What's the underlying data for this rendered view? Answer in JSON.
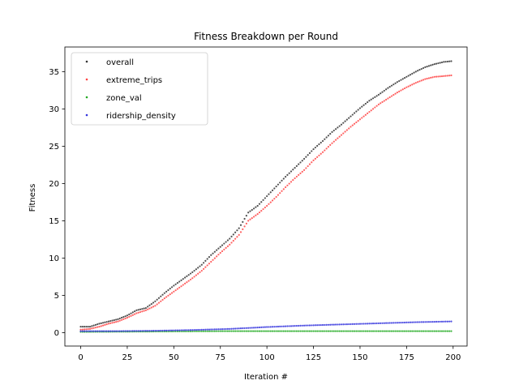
{
  "chart_data": {
    "type": "scatter",
    "title": "Fitness Breakdown per Round",
    "xlabel": "Iteration #",
    "ylabel": "Fitness",
    "xlim": [
      -8.5,
      207.5
    ],
    "ylim": [
      -1.8,
      38.3
    ],
    "xticks": [
      0,
      25,
      50,
      75,
      100,
      125,
      150,
      175,
      200
    ],
    "yticks": [
      0,
      5,
      10,
      15,
      20,
      25,
      30,
      35
    ],
    "grid": false,
    "legend_position": "top-left",
    "series": [
      {
        "name": "overall",
        "color": "#333333",
        "anchors": [
          [
            0,
            0.8
          ],
          [
            5,
            0.8
          ],
          [
            10,
            1.2
          ],
          [
            15,
            1.5
          ],
          [
            20,
            1.8
          ],
          [
            25,
            2.3
          ],
          [
            30,
            3.0
          ],
          [
            35,
            3.3
          ],
          [
            40,
            4.2
          ],
          [
            45,
            5.3
          ],
          [
            50,
            6.3
          ],
          [
            55,
            7.2
          ],
          [
            60,
            8.1
          ],
          [
            65,
            9.1
          ],
          [
            70,
            10.4
          ],
          [
            75,
            11.5
          ],
          [
            80,
            12.6
          ],
          [
            85,
            14.0
          ],
          [
            90,
            16.1
          ],
          [
            95,
            17.0
          ],
          [
            100,
            18.3
          ],
          [
            105,
            19.6
          ],
          [
            110,
            20.9
          ],
          [
            115,
            22.1
          ],
          [
            120,
            23.3
          ],
          [
            125,
            24.6
          ],
          [
            130,
            25.7
          ],
          [
            135,
            26.9
          ],
          [
            140,
            27.9
          ],
          [
            145,
            29.0
          ],
          [
            150,
            30.1
          ],
          [
            155,
            31.1
          ],
          [
            160,
            31.9
          ],
          [
            165,
            32.8
          ],
          [
            170,
            33.6
          ],
          [
            175,
            34.3
          ],
          [
            180,
            35.0
          ],
          [
            185,
            35.6
          ],
          [
            190,
            36.0
          ],
          [
            195,
            36.3
          ],
          [
            199,
            36.4
          ]
        ]
      },
      {
        "name": "extreme_trips",
        "color": "#ff4444",
        "anchors": [
          [
            0,
            0.4
          ],
          [
            5,
            0.5
          ],
          [
            10,
            0.8
          ],
          [
            15,
            1.2
          ],
          [
            20,
            1.5
          ],
          [
            25,
            2.0
          ],
          [
            30,
            2.6
          ],
          [
            35,
            3.0
          ],
          [
            40,
            3.6
          ],
          [
            45,
            4.6
          ],
          [
            50,
            5.5
          ],
          [
            55,
            6.4
          ],
          [
            60,
            7.3
          ],
          [
            65,
            8.3
          ],
          [
            70,
            9.5
          ],
          [
            75,
            10.7
          ],
          [
            80,
            11.8
          ],
          [
            85,
            13.1
          ],
          [
            90,
            15.0
          ],
          [
            95,
            15.9
          ],
          [
            100,
            17.0
          ],
          [
            105,
            18.2
          ],
          [
            110,
            19.5
          ],
          [
            115,
            20.7
          ],
          [
            120,
            21.8
          ],
          [
            125,
            23.1
          ],
          [
            130,
            24.2
          ],
          [
            135,
            25.4
          ],
          [
            140,
            26.5
          ],
          [
            145,
            27.6
          ],
          [
            150,
            28.6
          ],
          [
            155,
            29.6
          ],
          [
            160,
            30.6
          ],
          [
            165,
            31.4
          ],
          [
            170,
            32.2
          ],
          [
            175,
            32.9
          ],
          [
            180,
            33.5
          ],
          [
            185,
            34.0
          ],
          [
            190,
            34.3
          ],
          [
            195,
            34.4
          ],
          [
            199,
            34.5
          ]
        ]
      },
      {
        "name": "zone_val",
        "color": "#22aa22",
        "anchors": [
          [
            0,
            0.1
          ],
          [
            40,
            0.15
          ],
          [
            80,
            0.2
          ],
          [
            120,
            0.2
          ],
          [
            160,
            0.2
          ],
          [
            199,
            0.2
          ]
        ]
      },
      {
        "name": "ridership_density",
        "color": "#3333dd",
        "anchors": [
          [
            0,
            0.2
          ],
          [
            20,
            0.2
          ],
          [
            40,
            0.25
          ],
          [
            60,
            0.35
          ],
          [
            80,
            0.5
          ],
          [
            100,
            0.75
          ],
          [
            120,
            0.95
          ],
          [
            140,
            1.1
          ],
          [
            160,
            1.25
          ],
          [
            180,
            1.4
          ],
          [
            199,
            1.5
          ]
        ]
      }
    ]
  }
}
